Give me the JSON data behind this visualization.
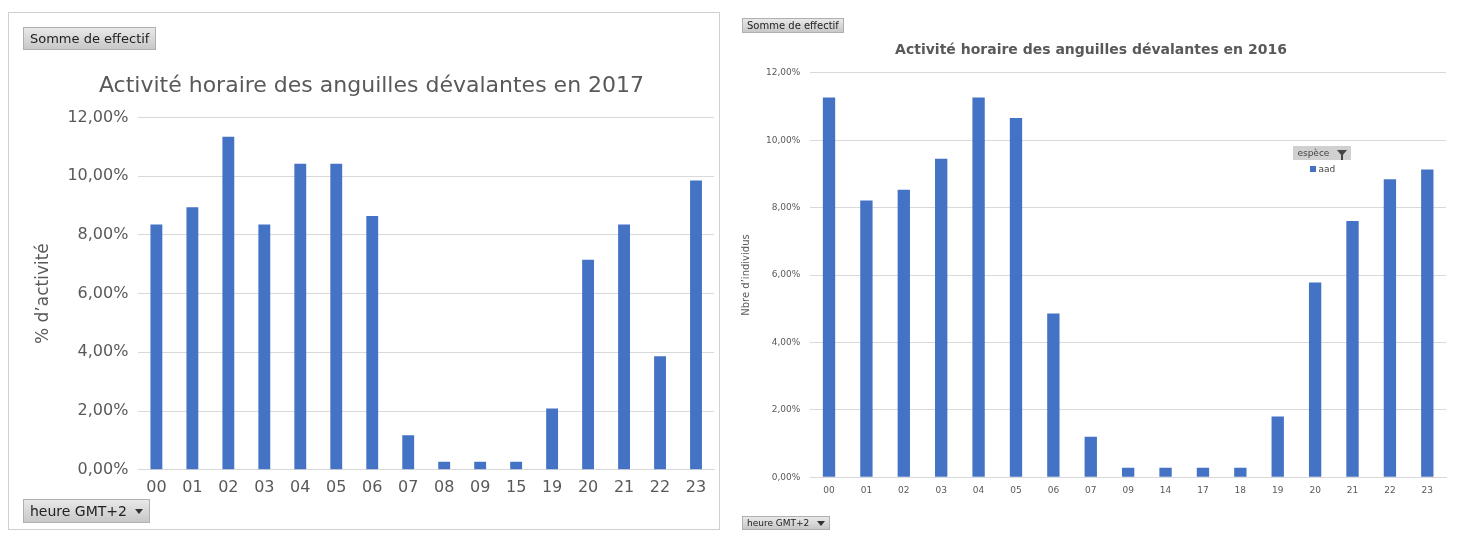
{
  "chart_data": [
    {
      "type": "bar",
      "title": "Activité horaire des anguilles dévalantes en 2017",
      "ylabel": "% d’activité",
      "annotations": [
        "Somme de effectif",
        "heure GMT+2"
      ],
      "categories": [
        "00",
        "01",
        "02",
        "03",
        "04",
        "05",
        "06",
        "07",
        "08",
        "09",
        "15",
        "19",
        "20",
        "21",
        "22",
        "23"
      ],
      "values": [
        8.35,
        8.94,
        11.34,
        8.35,
        10.42,
        10.42,
        8.64,
        1.18,
        0.27,
        0.27,
        0.27,
        2.09,
        7.15,
        8.35,
        3.87,
        9.85
      ],
      "color": "#4472c4",
      "ylim": [
        0,
        12
      ],
      "yticks": [
        {
          "value": 0,
          "label": "0,00%"
        },
        {
          "value": 2,
          "label": "2,00%"
        },
        {
          "value": 4,
          "label": "4,00%"
        },
        {
          "value": 6,
          "label": "6,00%"
        },
        {
          "value": 8,
          "label": "8,00%"
        },
        {
          "value": 10,
          "label": "10,00%"
        },
        {
          "value": 12,
          "label": "12,00%"
        }
      ],
      "grid": "y",
      "legend": false
    },
    {
      "type": "bar",
      "title": "Activité horaire des anguilles dévalantes en 2016",
      "ylabel": "Nbre d’individus",
      "legend_title": "espèce",
      "annotations": [
        "Somme de effectif",
        "heure GMT+2"
      ],
      "categories": [
        "00",
        "01",
        "02",
        "03",
        "04",
        "05",
        "06",
        "07",
        "09",
        "14",
        "17",
        "18",
        "19",
        "20",
        "21",
        "22",
        "23"
      ],
      "series": [
        {
          "name": "aad",
          "color": "#4472c4",
          "values": [
            11.27,
            8.21,
            8.53,
            9.45,
            11.27,
            10.66,
            4.86,
            1.2,
            0.28,
            0.28,
            0.28,
            0.28,
            1.8,
            5.78,
            7.6,
            8.84,
            9.13
          ]
        }
      ],
      "ylim": [
        0,
        12
      ],
      "yticks": [
        {
          "value": 0,
          "label": "0,00%"
        },
        {
          "value": 2,
          "label": "2,00%"
        },
        {
          "value": 4,
          "label": "4,00%"
        },
        {
          "value": 6,
          "label": "6,00%"
        },
        {
          "value": 8,
          "label": "8,00%"
        },
        {
          "value": 10,
          "label": "10,00%"
        },
        {
          "value": 12,
          "label": "12,00%"
        }
      ],
      "grid": "y",
      "legend": "top right"
    }
  ]
}
